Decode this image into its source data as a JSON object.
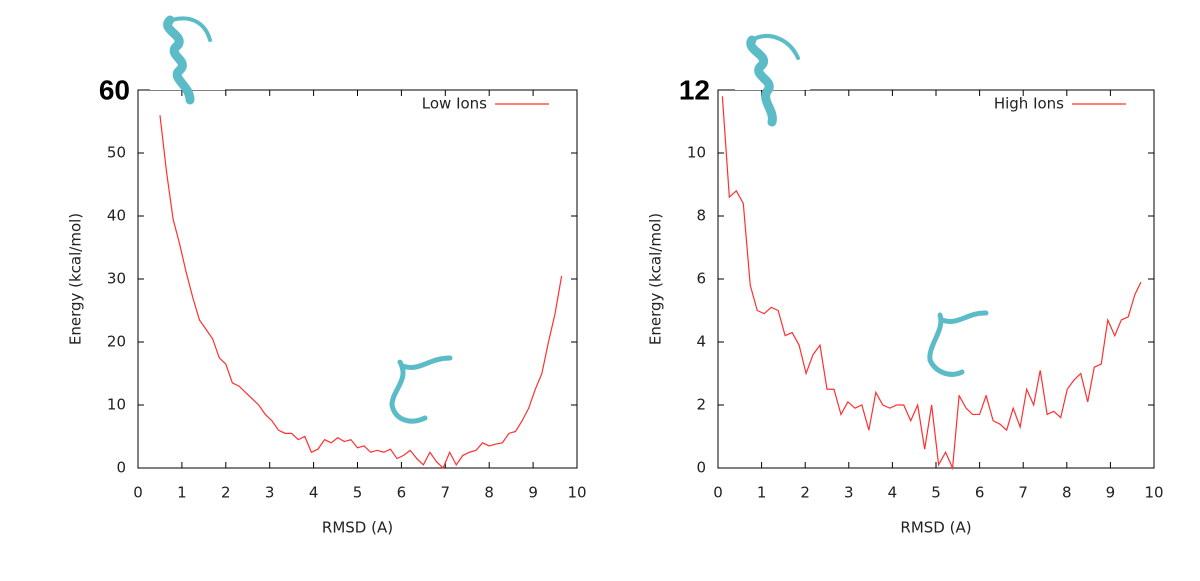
{
  "chart_data": [
    {
      "type": "line",
      "xlabel": "RMSD (A)",
      "ylabel": "Energy (kcal/mol)",
      "xlim": [
        0,
        10
      ],
      "xticks": [
        0,
        1,
        2,
        3,
        4,
        5,
        6,
        7,
        8,
        9,
        10
      ],
      "ylim": [
        0,
        60
      ],
      "yticks": [
        0,
        10,
        20,
        30,
        40,
        50,
        60
      ],
      "series": [
        {
          "name": "Low Ions",
          "color": "#ff3030",
          "x": [
            0.5,
            0.65,
            0.8,
            0.95,
            1.1,
            1.25,
            1.4,
            1.55,
            1.7,
            1.85,
            2.0,
            2.15,
            2.3,
            2.45,
            2.6,
            2.75,
            2.9,
            3.05,
            3.2,
            3.35,
            3.5,
            3.65,
            3.8,
            3.95,
            4.1,
            4.25,
            4.4,
            4.55,
            4.7,
            4.85,
            5.0,
            5.15,
            5.3,
            5.45,
            5.6,
            5.75,
            5.9,
            6.05,
            6.2,
            6.35,
            6.5,
            6.65,
            6.8,
            6.95,
            7.1,
            7.25,
            7.4,
            7.55,
            7.7,
            7.85,
            8.0,
            8.15,
            8.3,
            8.45,
            8.6,
            8.75,
            8.9,
            9.05,
            9.2,
            9.35,
            9.5,
            9.65
          ],
          "values": [
            56,
            47,
            39.5,
            35.5,
            31,
            27,
            23.5,
            22,
            20.5,
            17.5,
            16.5,
            13.5,
            13,
            12,
            11,
            10,
            8.5,
            7.5,
            6,
            5.5,
            5.5,
            4.5,
            5,
            2.5,
            3,
            4.5,
            4,
            4.8,
            4.2,
            4.5,
            3.2,
            3.5,
            2.5,
            2.8,
            2.5,
            3,
            1.5,
            2,
            2.8,
            1.5,
            0.5,
            2.5,
            1,
            0,
            2.5,
            0.5,
            2,
            2.5,
            2.8,
            4,
            3.5,
            3.8,
            4,
            5.5,
            5.8,
            7.5,
            9.5,
            12.5,
            15,
            20,
            24.5,
            30.5
          ]
        }
      ]
    },
    {
      "type": "line",
      "xlabel": "RMSD (A)",
      "ylabel": "Energy (kcal/mol)",
      "xlim": [
        0,
        10
      ],
      "xticks": [
        0,
        1,
        2,
        3,
        4,
        5,
        6,
        7,
        8,
        9,
        10
      ],
      "ylim": [
        0,
        12
      ],
      "yticks": [
        0,
        2,
        4,
        6,
        8,
        10,
        12
      ],
      "series": [
        {
          "name": "High Ions",
          "color": "#ff3030",
          "x": [
            0.1,
            0.26,
            0.42,
            0.58,
            0.74,
            0.9,
            1.06,
            1.22,
            1.38,
            1.54,
            1.7,
            1.86,
            2.02,
            2.18,
            2.34,
            2.5,
            2.66,
            2.82,
            2.98,
            3.14,
            3.3,
            3.46,
            3.62,
            3.78,
            3.94,
            4.1,
            4.26,
            4.42,
            4.58,
            4.74,
            4.9,
            5.06,
            5.22,
            5.38,
            5.53,
            5.69,
            5.84,
            6.0,
            6.15,
            6.31,
            6.46,
            6.62,
            6.77,
            6.93,
            7.08,
            7.24,
            7.39,
            7.55,
            7.7,
            7.86,
            8.01,
            8.17,
            8.32,
            8.48,
            8.63,
            8.79,
            8.94,
            9.1,
            9.25,
            9.41,
            9.56,
            9.7
          ],
          "values": [
            11.8,
            8.6,
            8.8,
            8.4,
            5.8,
            5.0,
            4.9,
            5.1,
            5.0,
            4.2,
            4.3,
            3.9,
            3.0,
            3.6,
            3.9,
            2.5,
            2.5,
            1.7,
            2.1,
            1.9,
            2.0,
            1.2,
            2.4,
            2.0,
            1.9,
            2.0,
            2.0,
            1.5,
            2.0,
            0.6,
            2.0,
            0.1,
            0.5,
            0,
            2.3,
            1.9,
            1.7,
            1.7,
            2.3,
            1.5,
            1.4,
            1.2,
            1.9,
            1.3,
            2.5,
            2.0,
            3.1,
            1.7,
            1.8,
            1.6,
            2.5,
            2.8,
            3.0,
            2.1,
            3.2,
            3.3,
            4.7,
            4.2,
            4.7,
            4.8,
            5.5,
            5.9
          ]
        }
      ]
    }
  ]
}
